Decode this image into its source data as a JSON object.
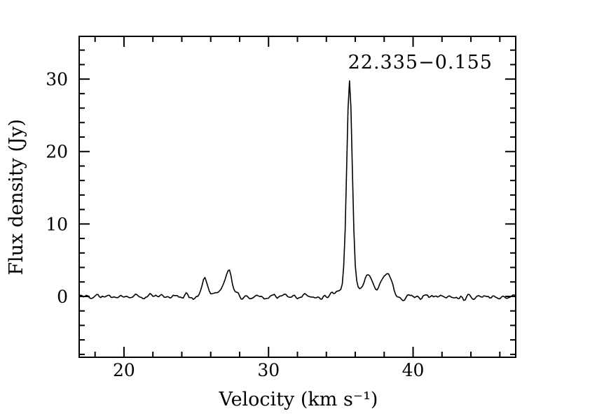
{
  "figure": {
    "background": "#ffffff",
    "frame_color": "#000000"
  },
  "chart_data": {
    "type": "line",
    "title": "22.335−0.155",
    "xlabel": "Velocity (km s⁻¹)",
    "ylabel": "Flux density (Jy)",
    "xlim": [
      16.9,
      47.1
    ],
    "ylim": [
      -8.4,
      35.9
    ],
    "x_major_ticks": [
      20,
      30,
      40
    ],
    "x_minor_step": 2,
    "y_major_ticks": [
      0,
      10,
      20,
      30
    ],
    "y_minor_step": 2,
    "grid": false,
    "legend": "none",
    "line_color": "#000000",
    "channel_width_kms": 0.1,
    "noise_rms_jy": 0.2,
    "noise_seed": 11,
    "gaussian_components": [
      {
        "center_kms": 25.6,
        "peak_jy": 2.7,
        "fwhm_kms": 0.45
      },
      {
        "center_kms": 26.4,
        "peak_jy": 0.9,
        "fwhm_kms": 0.35
      },
      {
        "center_kms": 27.2,
        "peak_jy": 3.6,
        "fwhm_kms": 0.6
      },
      {
        "center_kms": 34.7,
        "peak_jy": 0.5,
        "fwhm_kms": 0.4
      },
      {
        "center_kms": 35.6,
        "peak_jy": 28.3,
        "fwhm_kms": 0.45
      },
      {
        "center_kms": 35.6,
        "peak_jy": 1.5,
        "fwhm_kms": 1.4
      },
      {
        "center_kms": 36.9,
        "peak_jy": 2.9,
        "fwhm_kms": 0.6
      },
      {
        "center_kms": 37.6,
        "peak_jy": 0.7,
        "fwhm_kms": 0.9
      },
      {
        "center_kms": 38.2,
        "peak_jy": 3.4,
        "fwhm_kms": 0.7
      }
    ],
    "peaks_readout": [
      {
        "velocity_kms": 25.6,
        "flux_jy": 2.7
      },
      {
        "velocity_kms": 27.2,
        "flux_jy": 3.6
      },
      {
        "velocity_kms": 35.6,
        "flux_jy": 29.8
      },
      {
        "velocity_kms": 36.9,
        "flux_jy": 3.0
      },
      {
        "velocity_kms": 38.2,
        "flux_jy": 3.5
      }
    ]
  }
}
